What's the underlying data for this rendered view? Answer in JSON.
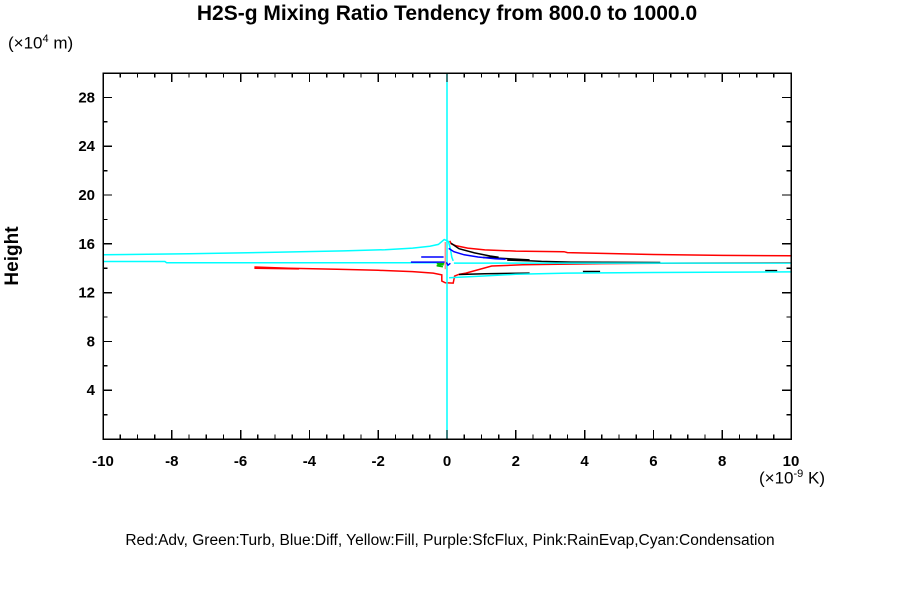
{
  "header": {
    "title": "H2S-g Mixing Ratio Tendency from 800.0 to 1000.0"
  },
  "axes": {
    "y_label": "Height",
    "y_unit": {
      "prefix": "(×10",
      "exponent": "4",
      "suffix": " m)"
    },
    "x_unit": {
      "prefix": "(×10",
      "exponent": "-9",
      "suffix": " K)"
    }
  },
  "legend": {
    "text": "Red:Adv, Green:Turb, Blue:Diff, Yellow:Fill, Purple:SfcFlux, Pink:RainEvap,Cyan:Condensation",
    "color_key": [
      {
        "color_name": "Red",
        "term": "Adv"
      },
      {
        "color_name": "Green",
        "term": "Turb"
      },
      {
        "color_name": "Blue",
        "term": "Diff"
      },
      {
        "color_name": "Yellow",
        "term": "Fill"
      },
      {
        "color_name": "Purple",
        "term": "SfcFlux"
      },
      {
        "color_name": "Pink",
        "term": "RainEvap"
      },
      {
        "color_name": "Cyan",
        "term": "Condensation"
      }
    ]
  },
  "chart_data": {
    "type": "line",
    "title": "H2S-g Mixing Ratio Tendency from 800.0 to 1000.0",
    "xlabel": "(x10^-9 K)",
    "ylabel": "Height (x10^4 m)",
    "xlim": [
      -10,
      10
    ],
    "ylim": [
      0,
      30
    ],
    "grid": false,
    "frame_color": "#000000",
    "x_major_step": 2,
    "x_minor_step": 0.5,
    "y_major_step": 4,
    "y_minor_step": 2,
    "x_tick_labels": [
      "-10",
      "-8",
      "-6",
      "-4",
      "-2",
      "0",
      "2",
      "4",
      "6",
      "8",
      "10"
    ],
    "y_tick_labels": [
      "4",
      "8",
      "12",
      "16",
      "20",
      "24",
      "28"
    ],
    "zero_line": {
      "x": 0,
      "color": "#00ffff"
    },
    "series": [
      {
        "name": "Adv",
        "color": "#ff0000",
        "segments": [
          [
            [
              0.08,
              16.25
            ],
            [
              0.12,
              16.0
            ],
            [
              0.25,
              15.85
            ],
            [
              0.6,
              15.65
            ],
            [
              1.1,
              15.5
            ],
            [
              2.0,
              15.4
            ],
            [
              3.4,
              15.35
            ],
            [
              3.5,
              15.28
            ],
            [
              5.0,
              15.18
            ],
            [
              6.0,
              15.12
            ],
            [
              8.0,
              15.05
            ],
            [
              10,
              15.02
            ]
          ],
          [
            [
              -5.6,
              14.1
            ],
            [
              -4.6,
              14.0
            ],
            [
              -3.2,
              13.92
            ],
            [
              -2.0,
              13.83
            ],
            [
              -1.0,
              13.72
            ],
            [
              -0.4,
              13.6
            ],
            [
              -0.15,
              13.45
            ],
            [
              -0.15,
              12.95
            ],
            [
              -0.05,
              12.8
            ],
            [
              0.18,
              12.78
            ],
            [
              0.22,
              13.35
            ],
            [
              0.35,
              13.5
            ],
            [
              0.55,
              13.6
            ],
            [
              1.3,
              14.18
            ],
            [
              2.2,
              14.28
            ],
            [
              4.5,
              14.38
            ],
            [
              7.0,
              14.42
            ],
            [
              10,
              14.44
            ]
          ],
          [
            [
              -5.6,
              14.0
            ],
            [
              -4.3,
              13.94
            ]
          ]
        ]
      },
      {
        "name": "Black",
        "color": "#000000",
        "segments": [
          [
            [
              0.12,
              16.05
            ],
            [
              0.35,
              15.6
            ],
            [
              0.8,
              15.25
            ],
            [
              1.25,
              15.0
            ],
            [
              1.5,
              14.9
            ],
            [
              1.05,
              14.88
            ],
            [
              1.55,
              14.82
            ],
            [
              2.05,
              14.73
            ],
            [
              2.4,
              14.68
            ],
            [
              1.75,
              14.66
            ],
            [
              2.45,
              14.6
            ],
            [
              2.75,
              14.56
            ],
            [
              3.6,
              14.5
            ],
            [
              4.6,
              14.48
            ],
            [
              6.2,
              14.47
            ]
          ],
          [
            [
              0.35,
              13.48
            ],
            [
              1.1,
              13.55
            ],
            [
              2.4,
              13.6
            ]
          ],
          [
            [
              3.95,
              13.73
            ],
            [
              4.45,
              13.73
            ]
          ],
          [
            [
              9.25,
              13.8
            ],
            [
              9.6,
              13.8
            ]
          ]
        ]
      },
      {
        "name": "Condensation",
        "color": "#00ffff",
        "segments": [
          [
            [
              0,
              30
            ],
            [
              0,
              0
            ]
          ],
          [
            [
              -10,
              15.1
            ],
            [
              -7.5,
              15.18
            ],
            [
              -5.0,
              15.3
            ],
            [
              -3.0,
              15.42
            ],
            [
              -1.8,
              15.52
            ],
            [
              -1.0,
              15.65
            ],
            [
              -0.5,
              15.8
            ],
            [
              -0.25,
              15.95
            ],
            [
              -0.08,
              16.35
            ],
            [
              0.04,
              16.2
            ],
            [
              0.1,
              15.6
            ],
            [
              0.14,
              14.9
            ],
            [
              0.18,
              14.6
            ]
          ],
          [
            [
              -10,
              14.55
            ],
            [
              -8.2,
              14.55
            ],
            [
              -8.15,
              14.45
            ],
            [
              -0.3,
              14.44
            ]
          ],
          [
            [
              0.2,
              14.42
            ],
            [
              10,
              14.42
            ]
          ],
          [
            [
              0.06,
              13.22
            ],
            [
              1.0,
              13.35
            ],
            [
              2.0,
              13.5
            ],
            [
              3.5,
              13.6
            ],
            [
              6.0,
              13.65
            ],
            [
              10,
              13.7
            ]
          ]
        ]
      },
      {
        "name": "Diff",
        "color": "#0000ff",
        "segments": [
          [
            [
              -1.05,
              14.5
            ],
            [
              -0.05,
              14.5
            ]
          ],
          [
            [
              -0.75,
              14.92
            ],
            [
              -0.1,
              14.92
            ]
          ],
          [
            [
              0.05,
              15.62
            ],
            [
              0.2,
              15.35
            ],
            [
              0.5,
              15.1
            ],
            [
              0.9,
              14.92
            ],
            [
              1.4,
              14.78
            ],
            [
              1.7,
              14.73
            ]
          ],
          [
            [
              -0.02,
              14.48
            ],
            [
              0.03,
              14.25
            ],
            [
              0.1,
              14.4
            ]
          ]
        ]
      },
      {
        "name": "Turb",
        "color": "#00bb00",
        "segments": [
          [
            [
              -0.3,
              14.38
            ],
            [
              -0.08,
              14.38
            ],
            [
              -0.28,
              14.3
            ],
            [
              -0.1,
              14.28
            ],
            [
              -0.3,
              14.2
            ],
            [
              -0.12,
              14.12
            ]
          ]
        ]
      },
      {
        "name": "RainEvap",
        "color": "#ff9090",
        "segments": [
          [
            [
              -0.05,
              16.15
            ],
            [
              -0.05,
              13.92
            ]
          ]
        ]
      }
    ]
  }
}
